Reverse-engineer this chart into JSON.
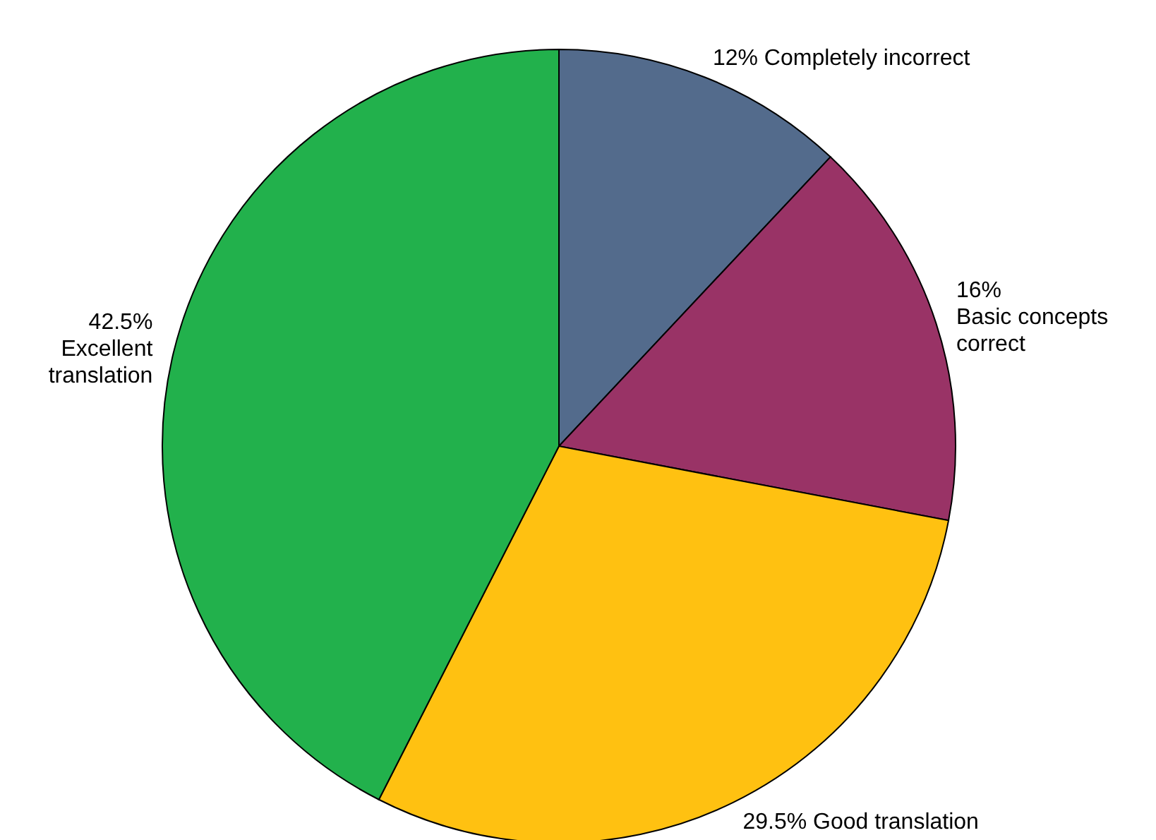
{
  "chart_data": {
    "type": "pie",
    "categories": [
      "Completely incorrect",
      "Basic concepts correct",
      "Good translation",
      "Excellent translation"
    ],
    "values": [
      12,
      16,
      29.5,
      42.5
    ],
    "value_labels": [
      "12%",
      "16%",
      "29.5%",
      "42.5%"
    ],
    "colors": [
      "#536b8c",
      "#993366",
      "#ffc111",
      "#22b14c"
    ]
  }
}
